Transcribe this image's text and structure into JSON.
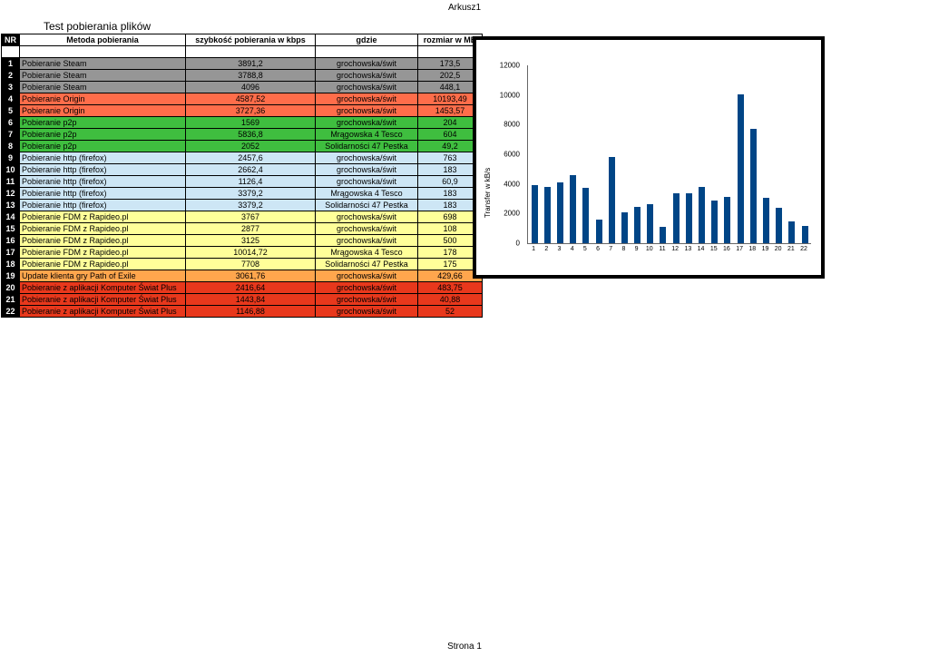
{
  "page": {
    "sheet_label": "Arkusz1",
    "footer_label": "Strona 1"
  },
  "table": {
    "title": "Test pobierania plików",
    "headers": [
      "NR",
      "Metoda pobierania",
      "szybkość pobierania w kbps",
      "gdzie",
      "rozmiar w MB"
    ],
    "rows": [
      {
        "nr": "1",
        "metoda": "Pobieranie Steam",
        "szybkosc": "3891,2",
        "gdzie": "grochowska/świt",
        "rozmiar": "173,5",
        "group": "gray"
      },
      {
        "nr": "2",
        "metoda": "Pobieranie Steam",
        "szybkosc": "3788,8",
        "gdzie": "grochowska/świt",
        "rozmiar": "202,5",
        "group": "gray"
      },
      {
        "nr": "3",
        "metoda": "Pobieranie Steam",
        "szybkosc": "4096",
        "gdzie": "grochowska/świt",
        "rozmiar": "448,1",
        "group": "gray"
      },
      {
        "nr": "4",
        "metoda": "Pobieranie Origin",
        "szybkosc": "4587,52",
        "gdzie": "grochowska/świt",
        "rozmiar": "10193,49",
        "group": "coral"
      },
      {
        "nr": "5",
        "metoda": "Pobieranie Origin",
        "szybkosc": "3727,36",
        "gdzie": "grochowska/świt",
        "rozmiar": "1453,57",
        "group": "coral"
      },
      {
        "nr": "6",
        "metoda": "Pobieranie p2p",
        "szybkosc": "1569",
        "gdzie": "grochowska/świt",
        "rozmiar": "204",
        "group": "green"
      },
      {
        "nr": "7",
        "metoda": "Pobieranie p2p",
        "szybkosc": "5836,8",
        "gdzie": "Mrągowska 4 Tesco",
        "rozmiar": "604",
        "group": "green"
      },
      {
        "nr": "8",
        "metoda": "Pobieranie p2p",
        "szybkosc": "2052",
        "gdzie": "Solidarności 47 Pestka",
        "rozmiar": "49,2",
        "group": "green"
      },
      {
        "nr": "9",
        "metoda": "Pobieranie http (firefox)",
        "szybkosc": "2457,6",
        "gdzie": "grochowska/świt",
        "rozmiar": "763",
        "group": "blue"
      },
      {
        "nr": "10",
        "metoda": "Pobieranie http (firefox)",
        "szybkosc": "2662,4",
        "gdzie": "grochowska/świt",
        "rozmiar": "183",
        "group": "blue"
      },
      {
        "nr": "11",
        "metoda": "Pobieranie http (firefox)",
        "szybkosc": "1126,4",
        "gdzie": "grochowska/świt",
        "rozmiar": "60,9",
        "group": "blue"
      },
      {
        "nr": "12",
        "metoda": "Pobieranie http (firefox)",
        "szybkosc": "3379,2",
        "gdzie": "Mrągowska 4 Tesco",
        "rozmiar": "183",
        "group": "blue"
      },
      {
        "nr": "13",
        "metoda": "Pobieranie http (firefox)",
        "szybkosc": "3379,2",
        "gdzie": "Solidarności 47 Pestka",
        "rozmiar": "183",
        "group": "blue"
      },
      {
        "nr": "14",
        "metoda": "Pobieranie FDM z Rapideo.pl",
        "szybkosc": "3767",
        "gdzie": "grochowska/świt",
        "rozmiar": "698",
        "group": "yellow"
      },
      {
        "nr": "15",
        "metoda": "Pobieranie FDM z Rapideo.pl",
        "szybkosc": "2877",
        "gdzie": "grochowska/świt",
        "rozmiar": "108",
        "group": "yellow"
      },
      {
        "nr": "16",
        "metoda": "Pobieranie FDM z Rapideo.pl",
        "szybkosc": "3125",
        "gdzie": "grochowska/świt",
        "rozmiar": "500",
        "group": "yellow"
      },
      {
        "nr": "17",
        "metoda": "Pobieranie FDM z Rapideo.pl",
        "szybkosc": "10014,72",
        "gdzie": "Mrągowska 4 Tesco",
        "rozmiar": "178",
        "group": "yellow"
      },
      {
        "nr": "18",
        "metoda": "Pobieranie FDM z Rapideo.pl",
        "szybkosc": "7708",
        "gdzie": "Solidarności 47 Pestka",
        "rozmiar": "175",
        "group": "yellow"
      },
      {
        "nr": "19",
        "metoda": "Update klienta gry Path of Exile",
        "szybkosc": "3061,76",
        "gdzie": "grochowska/świt",
        "rozmiar": "429,66",
        "group": "orange"
      },
      {
        "nr": "20",
        "metoda": "Pobieranie z aplikacji Komputer Świat Plus",
        "szybkosc": "2416,64",
        "gdzie": "grochowska/świt",
        "rozmiar": "483,75",
        "group": "red"
      },
      {
        "nr": "21",
        "metoda": "Pobieranie z aplikacji Komputer Świat Plus",
        "szybkosc": "1443,84",
        "gdzie": "grochowska/świt",
        "rozmiar": "40,88",
        "group": "red"
      },
      {
        "nr": "22",
        "metoda": "Pobieranie z aplikacji Komputer Świat Plus",
        "szybkosc": "1146,88",
        "gdzie": "grochowska/świt",
        "rozmiar": "52",
        "group": "red"
      }
    ]
  },
  "chart_data": {
    "type": "bar",
    "title": "",
    "xlabel": "",
    "ylabel": "Transfer w kB/s",
    "categories": [
      "1",
      "2",
      "3",
      "4",
      "5",
      "6",
      "7",
      "8",
      "9",
      "10",
      "11",
      "12",
      "13",
      "14",
      "15",
      "16",
      "17",
      "18",
      "19",
      "20",
      "21",
      "22"
    ],
    "values": [
      3891.2,
      3788.8,
      4096,
      4587.52,
      3727.36,
      1569,
      5836.8,
      2052,
      2457.6,
      2662.4,
      1126.4,
      3379.2,
      3379.2,
      3767,
      2877,
      3125,
      10014.72,
      7708,
      3061.76,
      2416.64,
      1443.84,
      1146.88
    ],
    "ylim": [
      0,
      12000
    ],
    "yticks": [
      0,
      2000,
      4000,
      6000,
      8000,
      10000,
      12000
    ],
    "grid": false,
    "legend_position": "none"
  },
  "colors": {
    "gray": "#969696",
    "coral": "#FF6D4A",
    "green": "#3FBE3F",
    "blue": "#CDE6F5",
    "yellow": "#FFFF99",
    "orange": "#FFA64D",
    "red": "#E8381C",
    "nr_bg": "#000000",
    "bar": "#004586"
  }
}
